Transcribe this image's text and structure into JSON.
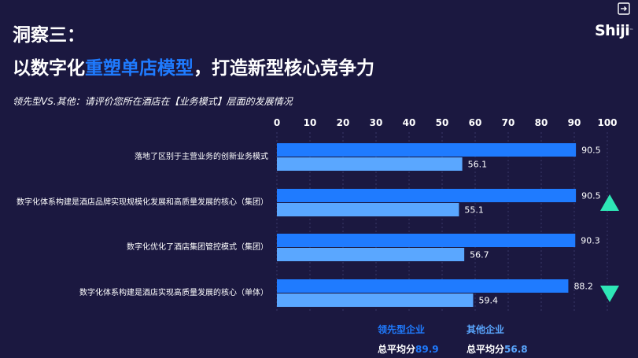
{
  "heading": {
    "line1": "洞察三：",
    "line2_prefix": "以数字化",
    "line2_highlight": "重塑单店模型",
    "line2_suffix": "，打造新型核心竞争力"
  },
  "subtitle": "领先型VS.其他：请评价您所在酒店在【业务模式】层面的发展情况",
  "logo": "Shiji",
  "colors": {
    "background": "#1b1840",
    "leader": "#1f7bff",
    "other": "#5aa7ff",
    "arrow": "#2ee6b6",
    "highlight": "#1f7bff"
  },
  "icons": {
    "exit": "exit-icon",
    "up_arrow": "triangle-up-icon",
    "down_arrow": "triangle-down-icon"
  },
  "chart_data": {
    "type": "bar",
    "orientation": "horizontal",
    "categories": [
      "落地了区别于主营业务的创新业务模式",
      "数字化体系构建是酒店品牌实现规模化发展和高质量发展的核心（集团）",
      "数字化优化了酒店集团管控模式（集团）",
      "数字化体系构建是酒店实现高质量发展的核心（单体）"
    ],
    "series": [
      {
        "name": "领先型企业",
        "values": [
          90.5,
          90.5,
          90.3,
          88.2
        ]
      },
      {
        "name": "其他企业",
        "values": [
          56.1,
          55.1,
          56.7,
          59.4
        ]
      }
    ],
    "xlim": [
      0,
      100
    ],
    "xticks": [
      0,
      10,
      20,
      30,
      40,
      50,
      60,
      70,
      80,
      90,
      100
    ],
    "xtick_position": "top",
    "grid": true,
    "legend_position": "bottom",
    "annotations": [
      {
        "category_index": 1,
        "marker": "up"
      },
      {
        "category_index": 3,
        "marker": "down"
      }
    ]
  },
  "legend": {
    "leader_label": "领先型企业",
    "other_label": "其他企业",
    "avg_prefix": "总平均分",
    "leader_avg": "89.9",
    "other_avg": "56.8"
  }
}
